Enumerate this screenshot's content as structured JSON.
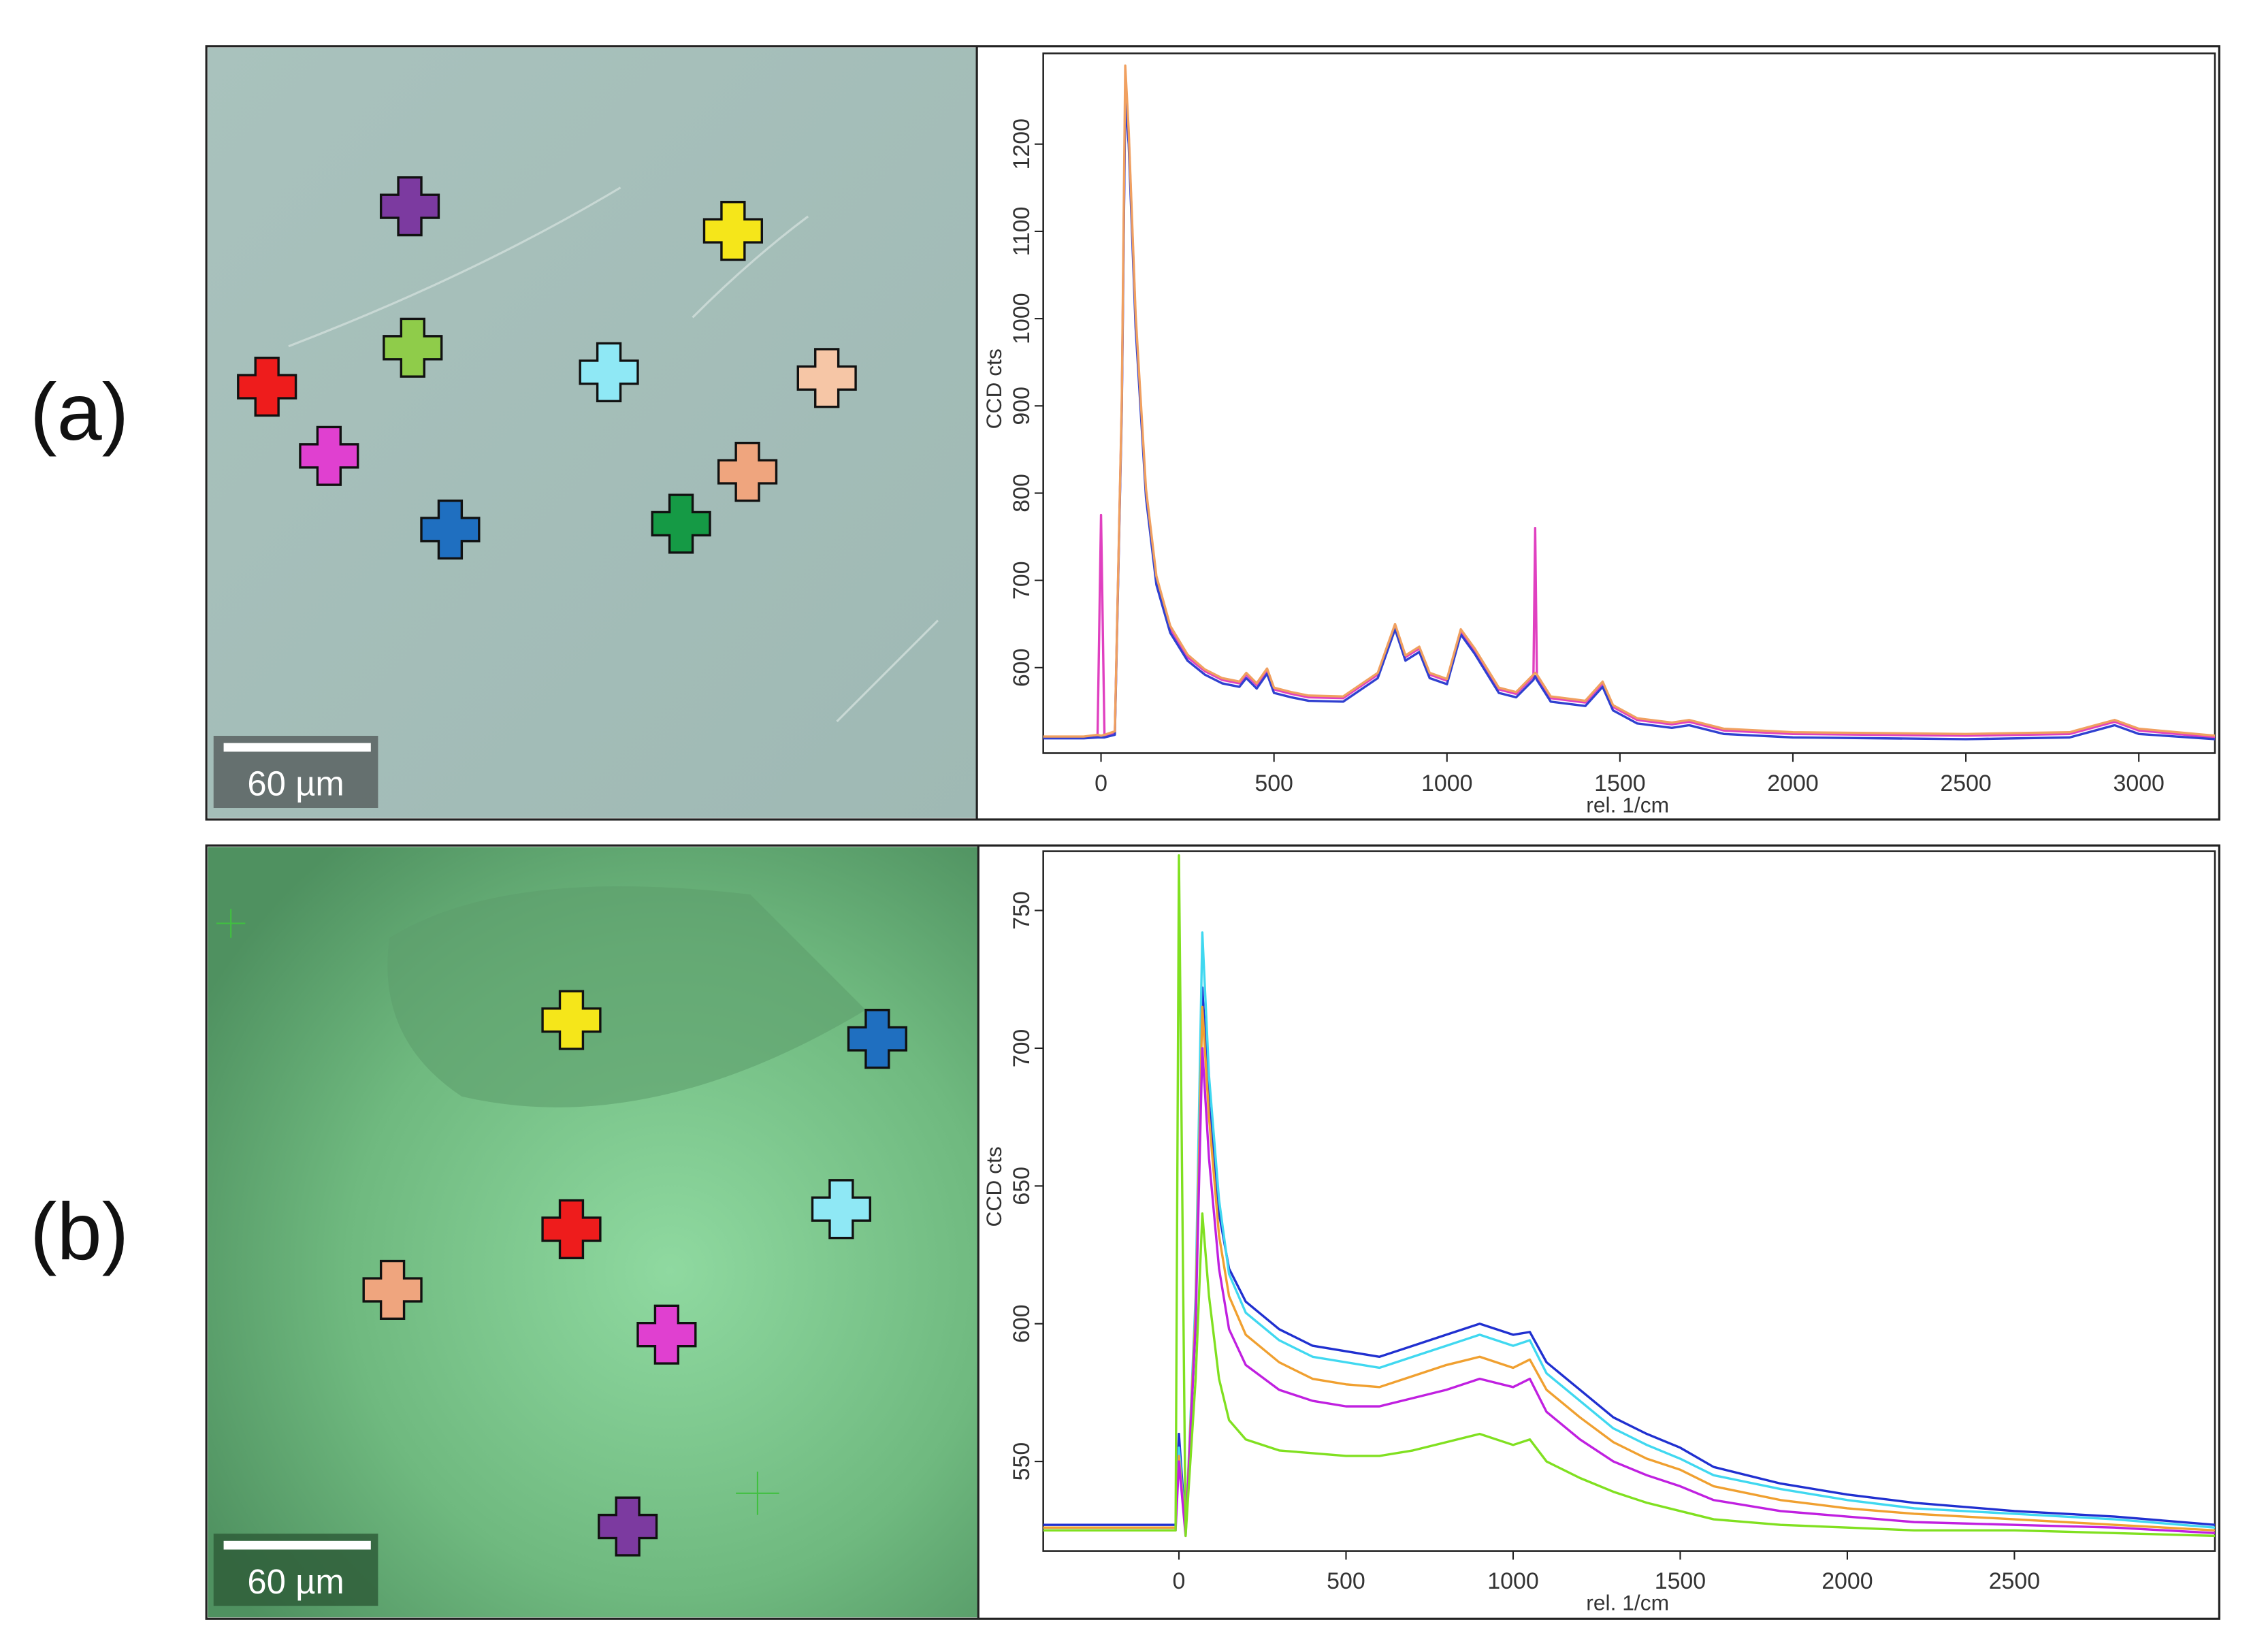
{
  "panels": [
    {
      "label": "(a)",
      "scale_bar": "60 µm"
    },
    {
      "label": "(b)",
      "scale_bar": "60 µm"
    }
  ],
  "chart_data": [
    {
      "type": "line",
      "ylabel": "CCD cts",
      "xlabel": "rel. 1/cm",
      "xlim": [
        -167,
        3220
      ],
      "ylim": [
        502,
        1304
      ],
      "xticks": [
        0,
        500,
        1000,
        1500,
        2000,
        2500,
        3000
      ],
      "yticks": [
        600,
        700,
        800,
        900,
        1000,
        1100,
        1200
      ],
      "x": [
        -167,
        -50,
        -10,
        0,
        10,
        40,
        60,
        70,
        80,
        100,
        130,
        160,
        200,
        250,
        300,
        350,
        400,
        420,
        450,
        480,
        500,
        550,
        600,
        700,
        800,
        850,
        880,
        920,
        950,
        1000,
        1040,
        1080,
        1150,
        1200,
        1250,
        1255,
        1260,
        1300,
        1400,
        1450,
        1480,
        1550,
        1650,
        1700,
        1800,
        2000,
        2500,
        2800,
        2930,
        3000,
        3220
      ],
      "series": [
        {
          "color": "#e040c0",
          "values": [
            520,
            520,
            522,
            775,
            522,
            525,
            900,
            1260,
            1210,
            1000,
            800,
            700,
            645,
            612,
            596,
            586,
            582,
            592,
            580,
            597,
            575,
            570,
            566,
            565,
            592,
            648,
            612,
            622,
            592,
            585,
            642,
            620,
            575,
            570,
            590,
            760,
            590,
            565,
            560,
            582,
            555,
            540,
            535,
            538,
            528,
            524,
            522,
            524,
            538,
            528,
            520
          ]
        },
        {
          "color": "#3040d0",
          "values": [
            519,
            519,
            520,
            520,
            520,
            523,
            895,
            1250,
            1200,
            990,
            795,
            695,
            640,
            608,
            592,
            582,
            578,
            588,
            576,
            593,
            571,
            566,
            562,
            561,
            588,
            644,
            608,
            618,
            588,
            581,
            638,
            616,
            571,
            566,
            586,
            590,
            586,
            561,
            556,
            578,
            551,
            536,
            531,
            534,
            524,
            520,
            518,
            520,
            534,
            524,
            518
          ]
        },
        {
          "color": "#f0a060",
          "values": [
            521,
            521,
            523,
            522,
            523,
            527,
            905,
            1290,
            1215,
            1005,
            805,
            705,
            648,
            615,
            598,
            588,
            584,
            594,
            582,
            599,
            577,
            572,
            568,
            567,
            594,
            650,
            614,
            624,
            594,
            587,
            644,
            622,
            577,
            572,
            592,
            594,
            592,
            567,
            562,
            584,
            557,
            542,
            537,
            540,
            530,
            526,
            524,
            526,
            540,
            530,
            522
          ]
        }
      ]
    },
    {
      "type": "line",
      "ylabel": "CCD cts",
      "xlabel": "rel. 1/cm",
      "xlim": [
        -406,
        3100
      ],
      "ylim": [
        517.5,
        771.5
      ],
      "xticks": [
        0,
        500,
        1000,
        1500,
        2000,
        2500
      ],
      "yticks": [
        550,
        600,
        650,
        700,
        750
      ],
      "x": [
        -406,
        -100,
        -10,
        0,
        20,
        50,
        70,
        90,
        120,
        150,
        200,
        300,
        400,
        500,
        600,
        700,
        800,
        900,
        1000,
        1050,
        1100,
        1200,
        1300,
        1400,
        1500,
        1600,
        1800,
        2000,
        2200,
        2500,
        2800,
        3100
      ],
      "series": [
        {
          "color": "#2030d0",
          "values": [
            527,
            527,
            527,
            560,
            525,
            600,
            722,
            680,
            640,
            620,
            608,
            598,
            592,
            590,
            588,
            592,
            596,
            600,
            596,
            597,
            586,
            576,
            566,
            560,
            555,
            548,
            542,
            538,
            535,
            532,
            530,
            527
          ]
        },
        {
          "color": "#40d8f0",
          "values": [
            526,
            526,
            526,
            555,
            524,
            610,
            742,
            690,
            645,
            618,
            604,
            594,
            588,
            586,
            584,
            588,
            592,
            596,
            592,
            594,
            582,
            572,
            562,
            556,
            551,
            545,
            540,
            536,
            533,
            531,
            529,
            526
          ]
        },
        {
          "color": "#f0a030",
          "values": [
            526,
            526,
            526,
            552,
            524,
            605,
            715,
            675,
            632,
            610,
            596,
            586,
            580,
            578,
            577,
            581,
            585,
            588,
            584,
            587,
            576,
            566,
            557,
            551,
            547,
            541,
            536,
            533,
            531,
            529,
            527,
            525
          ]
        },
        {
          "color": "#c020e0",
          "values": [
            525,
            525,
            525,
            550,
            523,
            600,
            700,
            660,
            620,
            598,
            585,
            576,
            572,
            570,
            570,
            573,
            576,
            580,
            577,
            580,
            568,
            558,
            550,
            545,
            541,
            536,
            532,
            530,
            528,
            527,
            526,
            524
          ]
        },
        {
          "color": "#80e020",
          "values": [
            525,
            525,
            525,
            770,
            523,
            580,
            640,
            610,
            580,
            565,
            558,
            554,
            553,
            552,
            552,
            554,
            557,
            560,
            556,
            558,
            550,
            544,
            539,
            535,
            532,
            529,
            527,
            526,
            525,
            525,
            524,
            523
          ]
        }
      ]
    }
  ]
}
